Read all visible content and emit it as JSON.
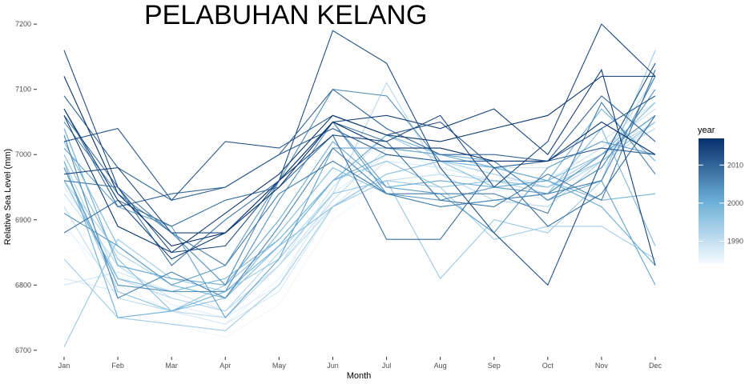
{
  "title": "PELABUHAN KELANG",
  "chart_data": {
    "type": "line",
    "title": "PELABUHAN KELANG",
    "xlabel": "Month",
    "ylabel": "Relative Sea Level (mm)",
    "categories": [
      "Jan",
      "Feb",
      "Mar",
      "Apr",
      "May",
      "Jun",
      "Jul",
      "Aug",
      "Sep",
      "Oct",
      "Nov",
      "Dec"
    ],
    "ylim": [
      6690,
      7210
    ],
    "yticks": [
      6700,
      6800,
      6900,
      7000,
      7100,
      7200
    ],
    "grid": false,
    "legend": {
      "title": "year",
      "type": "colorbar",
      "range": [
        1984,
        2017
      ],
      "ticks": [
        1990,
        2000,
        2010
      ],
      "placement": "right",
      "color_low": "#f7fbff",
      "color_high": "#08306b"
    },
    "series": [
      {
        "year": 1984,
        "values": [
          6850,
          6870,
          6830,
          6860,
          6880,
          6900,
          6950,
          6940,
          6930,
          6950,
          6980,
          7000
        ]
      },
      {
        "year": 1985,
        "values": [
          6900,
          6760,
          6740,
          6720,
          6770,
          6900,
          6960,
          6950,
          6960,
          6950,
          6980,
          7020
        ]
      },
      {
        "year": 1986,
        "values": [
          6890,
          6800,
          6760,
          6740,
          6810,
          6930,
          7010,
          6980,
          6960,
          6940,
          6990,
          7060
        ]
      },
      {
        "year": 1987,
        "values": [
          6950,
          6830,
          6770,
          6750,
          6800,
          6940,
          7000,
          6990,
          6950,
          6930,
          6980,
          7050
        ]
      },
      {
        "year": 1988,
        "values": [
          6810,
          6790,
          6760,
          6740,
          6790,
          6920,
          6990,
          6980,
          6960,
          6960,
          7000,
          7040
        ]
      },
      {
        "year": 1989,
        "values": [
          6800,
          6820,
          6790,
          6760,
          6830,
          6950,
          7030,
          6990,
          6980,
          6980,
          7020,
          7080
        ]
      },
      {
        "year": 1990,
        "values": [
          6940,
          6830,
          6780,
          6760,
          6830,
          6930,
          7010,
          7000,
          6980,
          6960,
          7010,
          7070
        ]
      },
      {
        "year": 1991,
        "values": [
          6920,
          6780,
          6760,
          6750,
          6830,
          6920,
          6960,
          6970,
          6960,
          6940,
          6990,
          7040
        ]
      },
      {
        "year": 1992,
        "values": [
          6990,
          6810,
          6780,
          6760,
          6850,
          6940,
          7110,
          6970,
          6930,
          6920,
          6990,
          7120
        ]
      },
      {
        "year": 1993,
        "values": [
          6960,
          6850,
          6800,
          6780,
          6860,
          6960,
          7030,
          6990,
          6970,
          6950,
          7000,
          7050
        ]
      },
      {
        "year": 1994,
        "values": [
          6840,
          6750,
          6740,
          6730,
          6800,
          6920,
          6960,
          6950,
          6870,
          6890,
          6890,
          6840
        ]
      },
      {
        "year": 1995,
        "values": [
          6705,
          6870,
          6810,
          6790,
          6840,
          6940,
          6960,
          6810,
          6900,
          6880,
          6960,
          7160
        ]
      },
      {
        "year": 1996,
        "values": [
          6980,
          6790,
          6760,
          6800,
          6870,
          6960,
          6990,
          6950,
          6960,
          6950,
          6990,
          7050
        ]
      },
      {
        "year": 1997,
        "values": [
          7000,
          6840,
          6760,
          6780,
          6860,
          6920,
          6970,
          6990,
          6950,
          6960,
          7000,
          7080
        ]
      },
      {
        "year": 1998,
        "values": [
          7020,
          6860,
          6800,
          6780,
          6880,
          6980,
          6940,
          6920,
          6930,
          6940,
          7040,
          6860
        ]
      },
      {
        "year": 1999,
        "values": [
          6960,
          6810,
          6790,
          6810,
          6870,
          6960,
          7000,
          6990,
          6980,
          6960,
          6930,
          6940
        ]
      },
      {
        "year": 2000,
        "values": [
          6990,
          6750,
          6760,
          6790,
          6860,
          6960,
          7030,
          7000,
          6980,
          6960,
          7070,
          6990
        ]
      },
      {
        "year": 2001,
        "values": [
          7040,
          6830,
          6810,
          6800,
          6900,
          7020,
          6950,
          6960,
          6950,
          6960,
          6920,
          6830
        ]
      },
      {
        "year": 2002,
        "values": [
          7010,
          6920,
          6890,
          6750,
          6840,
          7010,
          7010,
          7000,
          6990,
          6930,
          6960,
          6800
        ]
      },
      {
        "year": 2003,
        "values": [
          6910,
          6860,
          6800,
          6830,
          6960,
          7050,
          6950,
          6940,
          6880,
          6980,
          7020,
          7000
        ]
      },
      {
        "year": 2004,
        "values": [
          6980,
          6800,
          6790,
          6790,
          6930,
          7050,
          6940,
          6930,
          6950,
          6940,
          7000,
          7060
        ]
      },
      {
        "year": 2005,
        "values": [
          7050,
          6940,
          6880,
          6800,
          6960,
          7100,
          7090,
          6990,
          6990,
          6930,
          6980,
          7100
        ]
      },
      {
        "year": 2006,
        "values": [
          7030,
          6780,
          6820,
          6780,
          6890,
          7010,
          6940,
          6920,
          6930,
          6940,
          6960,
          7120
        ]
      },
      {
        "year": 2007,
        "values": [
          6960,
          6950,
          6880,
          6830,
          6940,
          6990,
          6940,
          6940,
          6940,
          6910,
          7080,
          6970
        ]
      },
      {
        "year": 2008,
        "values": [
          7060,
          6950,
          6830,
          6900,
          6960,
          7050,
          7020,
          6930,
          6920,
          6970,
          6930,
          7130
        ]
      },
      {
        "year": 2009,
        "values": [
          6880,
          6930,
          6890,
          6930,
          6950,
          7030,
          6870,
          6870,
          6980,
          6890,
          6940,
          7060
        ]
      },
      {
        "year": 2010,
        "values": [
          7070,
          6920,
          6940,
          6950,
          7000,
          7100,
          7040,
          7000,
          7000,
          6990,
          7090,
          7020
        ]
      },
      {
        "year": 2011,
        "values": [
          7090,
          6980,
          6930,
          6950,
          7000,
          7040,
          7000,
          6990,
          6990,
          6990,
          7010,
          7000
        ]
      },
      {
        "year": 2012,
        "values": [
          7020,
          7040,
          6930,
          7020,
          7010,
          7060,
          7030,
          7050,
          6980,
          6990,
          7040,
          7090
        ]
      },
      {
        "year": 2013,
        "values": [
          7160,
          6950,
          6850,
          6860,
          6960,
          7190,
          7140,
          6980,
          6880,
          6800,
          6990,
          7140
        ]
      },
      {
        "year": 2014,
        "values": [
          6970,
          6980,
          6880,
          6880,
          6960,
          7030,
          7020,
          7060,
          6950,
          7020,
          7200,
          7120
        ]
      },
      {
        "year": 2015,
        "values": [
          7070,
          6930,
          6840,
          6880,
          6960,
          7050,
          7060,
          7040,
          7070,
          7000,
          7130,
          6830
        ]
      },
      {
        "year": 2016,
        "values": [
          7060,
          6890,
          6850,
          6910,
          6970,
          7060,
          7030,
          7020,
          7040,
          7060,
          7120,
          7120
        ]
      },
      {
        "year": 2017,
        "values": [
          7120,
          6940,
          6860,
          6880,
          6950,
          7050,
          7010,
          7010,
          6990,
          6990,
          7050,
          7000
        ]
      }
    ]
  }
}
